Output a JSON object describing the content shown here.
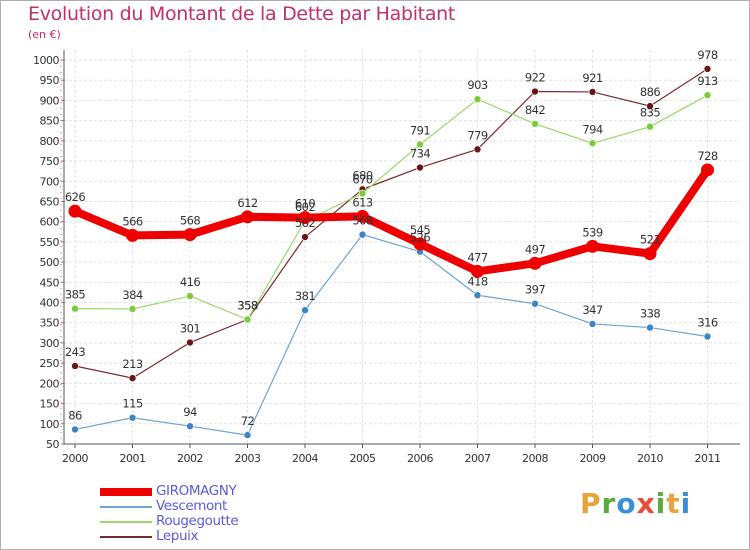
{
  "header": {
    "title": "Evolution du Montant de la Dette par Habitant",
    "unit": "(en €)"
  },
  "logo": {
    "letters": [
      "P",
      "r",
      "o",
      "x",
      "i",
      "t",
      "i"
    ],
    "colors": [
      "#e8a33a",
      "#5aaa3c",
      "#3b8fd6",
      "#e84b3a",
      "#5aaa3c",
      "#e8a33a",
      "#3b8fd6"
    ]
  },
  "chart_data": {
    "type": "line",
    "title": "Evolution du Montant de la Dette par Habitant",
    "ylabel": "(en €)",
    "xlabel": "",
    "x": [
      "2000",
      "2001",
      "2002",
      "2003",
      "2004",
      "2005",
      "2006",
      "2007",
      "2008",
      "2009",
      "2010",
      "2011"
    ],
    "ylim": [
      50,
      1000
    ],
    "yticks": [
      50,
      100,
      150,
      200,
      250,
      300,
      350,
      400,
      450,
      500,
      550,
      600,
      650,
      700,
      750,
      800,
      850,
      900,
      950,
      1000
    ],
    "grid": true,
    "legend": "bottom-left",
    "series": [
      {
        "name": "Lepuix",
        "color": "#7a2a2a",
        "marker": "#6b1414",
        "width": 1.2,
        "values": [
          243,
          213,
          301,
          358,
          562,
          680,
          734,
          779,
          922,
          921,
          886,
          978
        ]
      },
      {
        "name": "Rougegoutte",
        "color": "#9ad86a",
        "marker": "#7acc3a",
        "width": 1.2,
        "values": [
          385,
          384,
          416,
          358,
          602,
          670,
          791,
          903,
          842,
          794,
          835,
          913
        ]
      },
      {
        "name": "Vescemont",
        "color": "#6fa4cf",
        "marker": "#3b84c8",
        "width": 1.2,
        "values": [
          86,
          115,
          94,
          72,
          381,
          568,
          526,
          418,
          397,
          347,
          338,
          316
        ]
      },
      {
        "name": "GIROMAGNY",
        "color": "#ee0000",
        "marker": "#ee0000",
        "width": 8,
        "values": [
          626,
          566,
          568,
          612,
          610,
          613,
          545,
          477,
          497,
          539,
          521,
          728
        ]
      }
    ],
    "legend_order": [
      "GIROMAGNY",
      "Vescemont",
      "Rougegoutte",
      "Lepuix"
    ]
  }
}
